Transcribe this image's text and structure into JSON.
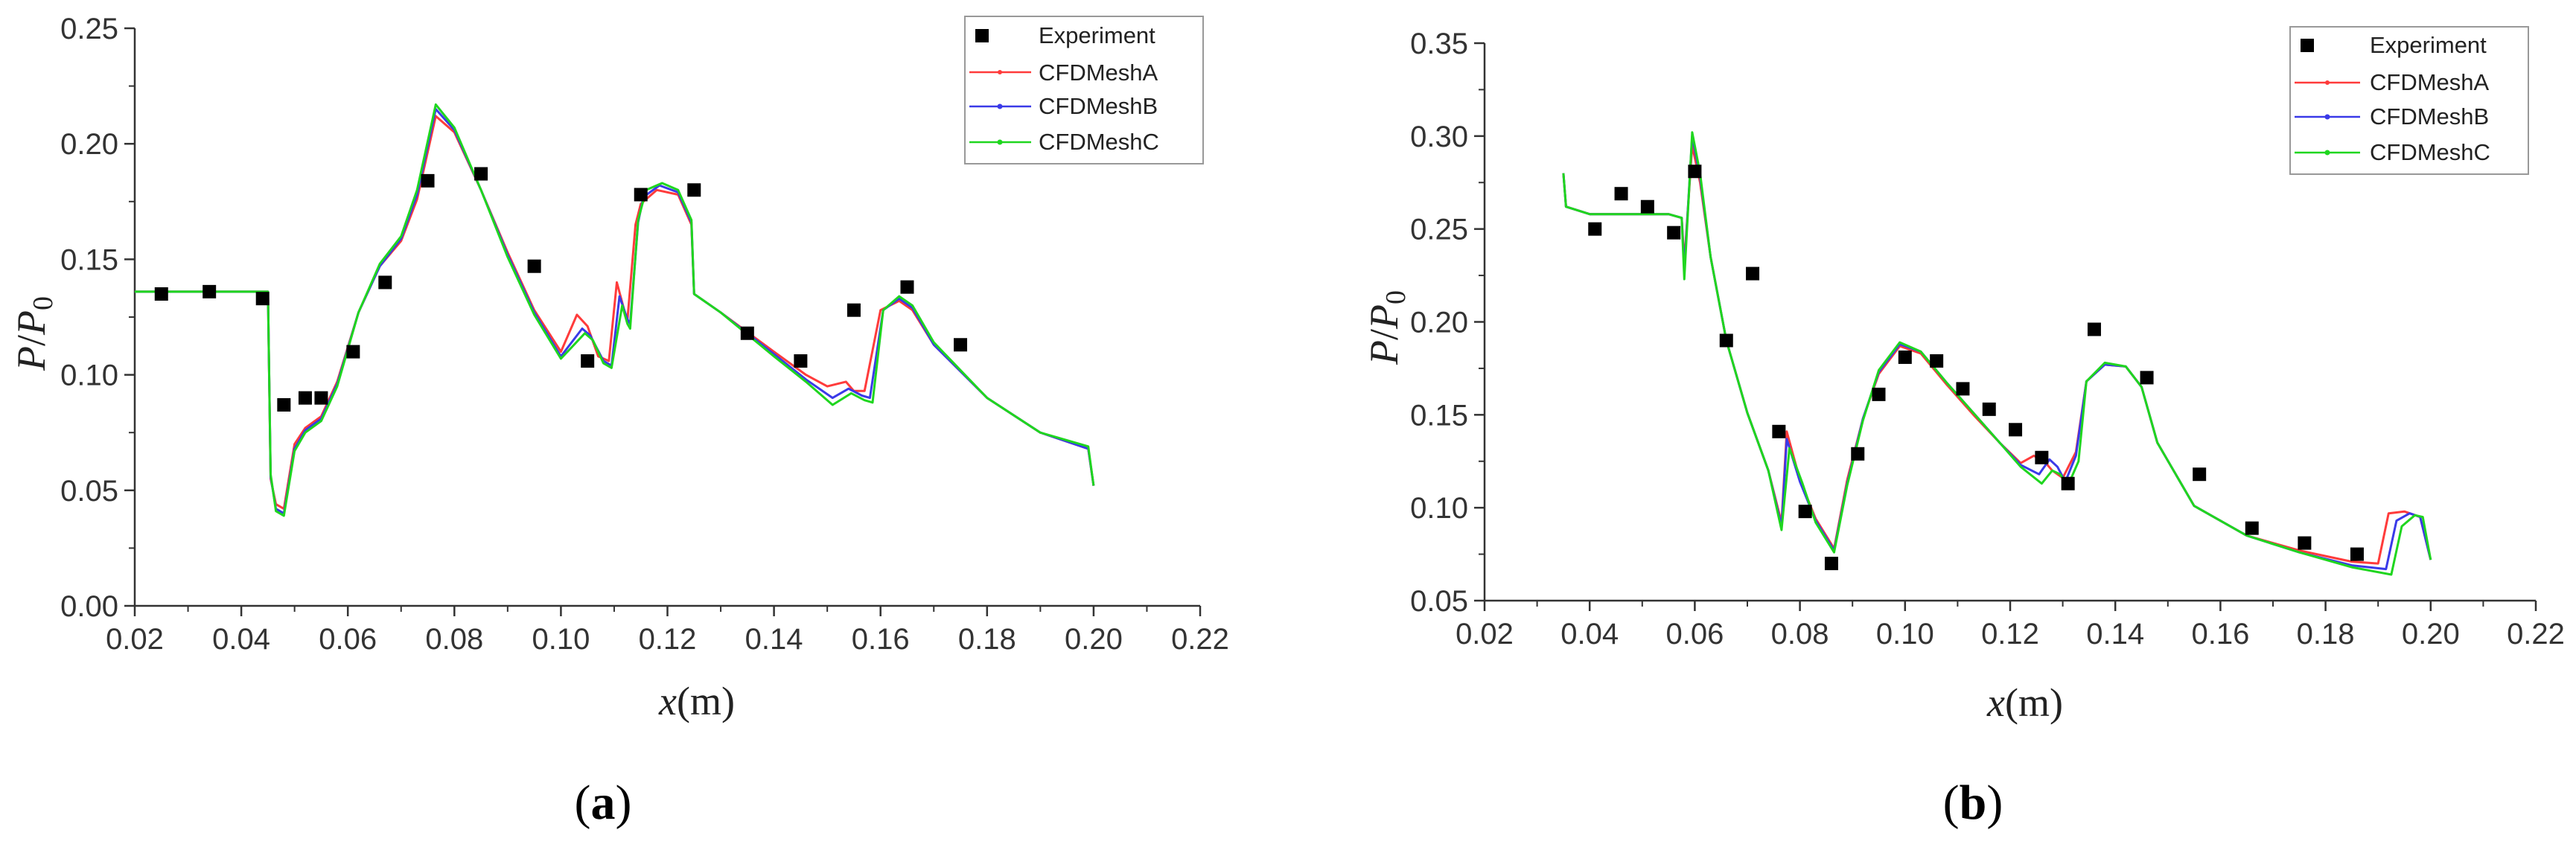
{
  "figure": {
    "panel_labels": [
      "a",
      "b"
    ]
  },
  "chart_data": [
    {
      "type": "line",
      "panel": "a",
      "title": "",
      "xlabel_var": "x",
      "xlabel_unit": "(m)",
      "ylabel_var1": "P",
      "ylabel_sep": "/",
      "ylabel_var2": "P",
      "ylabel_sub": "0",
      "xlim": [
        0.02,
        0.22
      ],
      "ylim": [
        0.0,
        0.25
      ],
      "xticks": [
        0.02,
        0.04,
        0.06,
        0.08,
        0.1,
        0.12,
        0.14,
        0.16,
        0.18,
        0.2,
        0.22
      ],
      "xtick_labels": [
        "0.02",
        "0.04",
        "0.06",
        "0.08",
        "0.10",
        "0.12",
        "0.14",
        "0.16",
        "0.18",
        "0.20",
        "0.22"
      ],
      "yticks": [
        0.0,
        0.05,
        0.1,
        0.15,
        0.2,
        0.25
      ],
      "ytick_labels": [
        "0.00",
        "0.05",
        "0.10",
        "0.15",
        "0.20",
        "0.25"
      ],
      "grid": false,
      "legend_position": "top-right",
      "legend": [
        "Experiment",
        "CFDMeshA",
        "CFDMeshB",
        "CFDMeshC"
      ],
      "experiment": {
        "name": "Experiment",
        "color": "#000000",
        "x": [
          0.025,
          0.034,
          0.044,
          0.048,
          0.052,
          0.055,
          0.061,
          0.067,
          0.075,
          0.085,
          0.095,
          0.105,
          0.115,
          0.125,
          0.135,
          0.145,
          0.155,
          0.165,
          0.175
        ],
        "y": [
          0.135,
          0.136,
          0.133,
          0.087,
          0.09,
          0.09,
          0.11,
          0.14,
          0.184,
          0.187,
          0.147,
          0.106,
          0.178,
          0.18,
          0.118,
          0.106,
          0.128,
          0.138,
          0.113
        ]
      },
      "series": [
        {
          "name": "CFDMeshA",
          "color": "#ff3b3b",
          "x": [
            0.02,
            0.045,
            0.0455,
            0.0465,
            0.048,
            0.05,
            0.052,
            0.055,
            0.058,
            0.062,
            0.066,
            0.07,
            0.073,
            0.0765,
            0.08,
            0.085,
            0.09,
            0.095,
            0.1,
            0.103,
            0.105,
            0.107,
            0.109,
            0.1105,
            0.112,
            0.1125,
            0.114,
            0.115,
            0.118,
            0.122,
            0.1245,
            0.125,
            0.13,
            0.14,
            0.146,
            0.15,
            0.1535,
            0.155,
            0.157,
            0.16,
            0.1635,
            0.166,
            0.17,
            0.18,
            0.19,
            0.199,
            0.2
          ],
          "y": [
            0.136,
            0.136,
            0.055,
            0.044,
            0.042,
            0.07,
            0.077,
            0.082,
            0.097,
            0.127,
            0.147,
            0.158,
            0.176,
            0.212,
            0.205,
            0.18,
            0.153,
            0.128,
            0.11,
            0.126,
            0.121,
            0.108,
            0.106,
            0.14,
            0.127,
            0.124,
            0.165,
            0.174,
            0.18,
            0.178,
            0.165,
            0.135,
            0.127,
            0.11,
            0.1,
            0.095,
            0.097,
            0.093,
            0.093,
            0.128,
            0.132,
            0.128,
            0.113,
            0.09,
            0.075,
            0.068,
            0.052
          ]
        },
        {
          "name": "CFDMeshB",
          "color": "#3a3ae8",
          "x": [
            0.02,
            0.045,
            0.0455,
            0.0465,
            0.048,
            0.05,
            0.052,
            0.055,
            0.058,
            0.062,
            0.066,
            0.07,
            0.073,
            0.0765,
            0.08,
            0.085,
            0.09,
            0.095,
            0.1,
            0.104,
            0.1055,
            0.108,
            0.1095,
            0.111,
            0.1125,
            0.113,
            0.1145,
            0.1155,
            0.1185,
            0.122,
            0.1245,
            0.125,
            0.13,
            0.14,
            0.146,
            0.151,
            0.154,
            0.1565,
            0.158,
            0.1605,
            0.1635,
            0.166,
            0.17,
            0.18,
            0.19,
            0.199,
            0.2
          ],
          "y": [
            0.136,
            0.136,
            0.056,
            0.042,
            0.04,
            0.068,
            0.076,
            0.081,
            0.096,
            0.127,
            0.147,
            0.159,
            0.178,
            0.215,
            0.206,
            0.18,
            0.152,
            0.127,
            0.108,
            0.12,
            0.117,
            0.106,
            0.104,
            0.134,
            0.124,
            0.122,
            0.166,
            0.177,
            0.182,
            0.179,
            0.166,
            0.135,
            0.127,
            0.109,
            0.098,
            0.09,
            0.094,
            0.091,
            0.09,
            0.128,
            0.133,
            0.129,
            0.113,
            0.09,
            0.075,
            0.068,
            0.052
          ]
        },
        {
          "name": "CFDMeshC",
          "color": "#1fd61f",
          "x": [
            0.02,
            0.045,
            0.0455,
            0.0465,
            0.048,
            0.05,
            0.052,
            0.055,
            0.058,
            0.062,
            0.066,
            0.07,
            0.073,
            0.0765,
            0.08,
            0.085,
            0.09,
            0.095,
            0.1,
            0.1045,
            0.106,
            0.108,
            0.1095,
            0.1115,
            0.1125,
            0.113,
            0.1145,
            0.116,
            0.119,
            0.122,
            0.1245,
            0.125,
            0.13,
            0.14,
            0.146,
            0.151,
            0.1545,
            0.157,
            0.1585,
            0.1605,
            0.1635,
            0.166,
            0.17,
            0.18,
            0.19,
            0.199,
            0.2
          ],
          "y": [
            0.136,
            0.136,
            0.057,
            0.041,
            0.039,
            0.067,
            0.075,
            0.08,
            0.095,
            0.127,
            0.148,
            0.16,
            0.18,
            0.217,
            0.207,
            0.18,
            0.151,
            0.126,
            0.107,
            0.118,
            0.115,
            0.105,
            0.103,
            0.13,
            0.122,
            0.12,
            0.167,
            0.18,
            0.183,
            0.18,
            0.167,
            0.135,
            0.127,
            0.108,
            0.097,
            0.087,
            0.092,
            0.089,
            0.088,
            0.128,
            0.134,
            0.13,
            0.114,
            0.09,
            0.075,
            0.069,
            0.052
          ]
        }
      ]
    },
    {
      "type": "line",
      "panel": "b",
      "title": "",
      "xlabel_var": "x",
      "xlabel_unit": "(m)",
      "ylabel_var1": "P",
      "ylabel_sep": "/",
      "ylabel_var2": "P",
      "ylabel_sub": "0",
      "xlim": [
        0.02,
        0.22
      ],
      "ylim": [
        0.05,
        0.35
      ],
      "xticks": [
        0.02,
        0.04,
        0.06,
        0.08,
        0.1,
        0.12,
        0.14,
        0.16,
        0.18,
        0.2,
        0.22
      ],
      "xtick_labels": [
        "0.02",
        "0.04",
        "0.06",
        "0.08",
        "0.10",
        "0.12",
        "0.14",
        "0.16",
        "0.18",
        "0.20",
        "0.22"
      ],
      "yticks": [
        0.05,
        0.1,
        0.15,
        0.2,
        0.25,
        0.3,
        0.35
      ],
      "ytick_labels": [
        "0.05",
        "0.10",
        "0.15",
        "0.20",
        "0.25",
        "0.30",
        "0.35"
      ],
      "grid": false,
      "legend_position": "top-right",
      "legend": [
        "Experiment",
        "CFDMeshA",
        "CFDMeshB",
        "CFDMeshC"
      ],
      "experiment": {
        "name": "Experiment",
        "color": "#000000",
        "x": [
          0.041,
          0.046,
          0.051,
          0.056,
          0.06,
          0.066,
          0.071,
          0.076,
          0.081,
          0.086,
          0.091,
          0.095,
          0.1,
          0.106,
          0.111,
          0.116,
          0.121,
          0.126,
          0.131,
          0.136,
          0.146,
          0.156,
          0.166,
          0.176,
          0.186
        ],
        "y": [
          0.25,
          0.269,
          0.262,
          0.248,
          0.281,
          0.19,
          0.226,
          0.141,
          0.098,
          0.07,
          0.129,
          0.161,
          0.181,
          0.179,
          0.164,
          0.153,
          0.142,
          0.127,
          0.113,
          0.196,
          0.17,
          0.118,
          0.089,
          0.081,
          0.075
        ]
      },
      "series": [
        {
          "name": "CFDMeshA",
          "color": "#ff3b3b",
          "x": [
            0.035,
            0.0355,
            0.04,
            0.045,
            0.05,
            0.055,
            0.0575,
            0.058,
            0.0595,
            0.061,
            0.063,
            0.066,
            0.07,
            0.074,
            0.0765,
            0.0775,
            0.08,
            0.083,
            0.0865,
            0.089,
            0.092,
            0.095,
            0.099,
            0.103,
            0.108,
            0.113,
            0.118,
            0.122,
            0.1245,
            0.1265,
            0.128,
            0.13,
            0.1325,
            0.1345,
            0.138,
            0.142,
            0.145,
            0.148,
            0.155,
            0.165,
            0.175,
            0.185,
            0.19,
            0.192,
            0.195,
            0.198,
            0.2
          ],
          "y": [
            0.28,
            0.262,
            0.258,
            0.258,
            0.258,
            0.258,
            0.256,
            0.232,
            0.295,
            0.275,
            0.235,
            0.19,
            0.151,
            0.12,
            0.092,
            0.141,
            0.115,
            0.094,
            0.078,
            0.115,
            0.148,
            0.172,
            0.187,
            0.183,
            0.166,
            0.15,
            0.135,
            0.124,
            0.128,
            0.125,
            0.12,
            0.116,
            0.13,
            0.168,
            0.177,
            0.176,
            0.165,
            0.135,
            0.101,
            0.085,
            0.077,
            0.071,
            0.07,
            0.097,
            0.098,
            0.095,
            0.072
          ]
        },
        {
          "name": "CFDMeshB",
          "color": "#3a3ae8",
          "x": [
            0.035,
            0.0355,
            0.04,
            0.045,
            0.05,
            0.055,
            0.0575,
            0.058,
            0.0595,
            0.061,
            0.063,
            0.066,
            0.07,
            0.074,
            0.0765,
            0.0775,
            0.08,
            0.083,
            0.0865,
            0.089,
            0.092,
            0.095,
            0.099,
            0.103,
            0.108,
            0.113,
            0.118,
            0.122,
            0.1255,
            0.1275,
            0.129,
            0.1305,
            0.1325,
            0.1345,
            0.138,
            0.142,
            0.145,
            0.148,
            0.155,
            0.165,
            0.175,
            0.185,
            0.1915,
            0.1935,
            0.196,
            0.198,
            0.2
          ],
          "y": [
            0.28,
            0.262,
            0.258,
            0.258,
            0.258,
            0.258,
            0.256,
            0.228,
            0.3,
            0.278,
            0.235,
            0.19,
            0.151,
            0.12,
            0.09,
            0.137,
            0.114,
            0.093,
            0.077,
            0.113,
            0.148,
            0.173,
            0.188,
            0.184,
            0.167,
            0.151,
            0.135,
            0.123,
            0.118,
            0.126,
            0.122,
            0.114,
            0.128,
            0.168,
            0.177,
            0.176,
            0.165,
            0.135,
            0.101,
            0.085,
            0.076,
            0.069,
            0.067,
            0.093,
            0.097,
            0.095,
            0.072
          ]
        },
        {
          "name": "CFDMeshC",
          "color": "#1fd61f",
          "x": [
            0.035,
            0.0355,
            0.04,
            0.045,
            0.05,
            0.055,
            0.0575,
            0.058,
            0.0595,
            0.061,
            0.063,
            0.066,
            0.07,
            0.074,
            0.0765,
            0.078,
            0.0805,
            0.083,
            0.0865,
            0.089,
            0.092,
            0.095,
            0.099,
            0.103,
            0.108,
            0.113,
            0.118,
            0.122,
            0.126,
            0.128,
            0.1295,
            0.131,
            0.133,
            0.1345,
            0.138,
            0.142,
            0.145,
            0.148,
            0.155,
            0.165,
            0.175,
            0.185,
            0.1925,
            0.1945,
            0.197,
            0.1985,
            0.2
          ],
          "y": [
            0.28,
            0.262,
            0.258,
            0.258,
            0.258,
            0.258,
            0.256,
            0.223,
            0.302,
            0.28,
            0.235,
            0.19,
            0.151,
            0.12,
            0.088,
            0.132,
            0.113,
            0.092,
            0.076,
            0.112,
            0.147,
            0.174,
            0.189,
            0.184,
            0.167,
            0.151,
            0.135,
            0.122,
            0.113,
            0.12,
            0.118,
            0.112,
            0.125,
            0.168,
            0.178,
            0.176,
            0.165,
            0.135,
            0.101,
            0.085,
            0.076,
            0.068,
            0.064,
            0.09,
            0.096,
            0.095,
            0.072
          ]
        }
      ]
    }
  ]
}
